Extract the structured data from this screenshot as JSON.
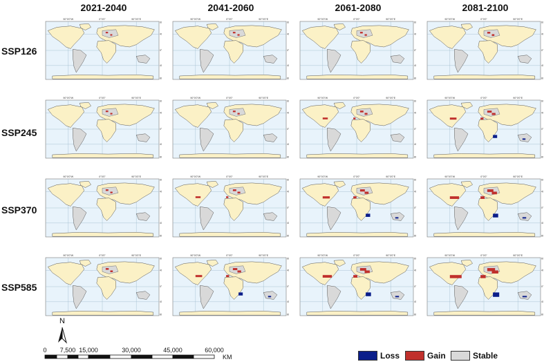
{
  "columns": [
    "2021-2040",
    "2041-2060",
    "2061-2080",
    "2081-2100"
  ],
  "rows": [
    "SSP126",
    "SSP245",
    "SSP370",
    "SSP585"
  ],
  "graticule": {
    "top": [
      "90°0'0\"W",
      "0°0'0\"",
      "90°0'0\"E"
    ],
    "right": [
      "60°0'0\"N",
      "40°0'0\"N",
      "0°0'0\"",
      "40°0'0\"S",
      "80°0'0\"S"
    ]
  },
  "scale_bar": {
    "north": "N",
    "ticks": [
      "0",
      "7,500",
      "15,000",
      "30,000",
      "45,000",
      "60,000"
    ],
    "unit": "KM"
  },
  "legend": [
    {
      "label": "Loss",
      "color": "#0b1e8a"
    },
    {
      "label": "Gain",
      "color": "#c0302c"
    },
    {
      "label": "Stable",
      "color": "#d9d9d9"
    }
  ],
  "colors": {
    "ocean": "#e8f3fb",
    "land": "#fbf1c6",
    "border": "#555555",
    "stable": "#d9d9d9"
  },
  "change_intensity": [
    [
      0.05,
      0.08,
      0.1,
      0.15
    ],
    [
      0.08,
      0.1,
      0.2,
      0.35
    ],
    [
      0.1,
      0.2,
      0.4,
      0.6
    ],
    [
      0.15,
      0.35,
      0.6,
      0.85
    ]
  ]
}
